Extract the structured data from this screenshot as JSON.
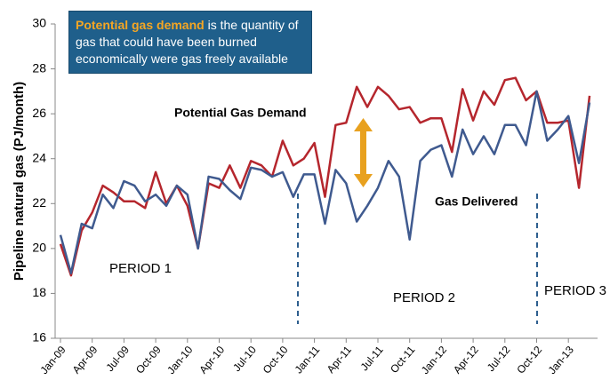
{
  "chart_data": {
    "type": "line",
    "y_label": "Pipeline natural gas (PJ/month)",
    "categories": [
      "Jan-09",
      null,
      null,
      "Apr-09",
      null,
      null,
      "Jul-09",
      null,
      null,
      "Oct-09",
      null,
      null,
      "Jan-10",
      null,
      null,
      "Apr-10",
      null,
      null,
      "Jul-10",
      null,
      null,
      "Oct-10",
      null,
      null,
      "Jan-11",
      null,
      null,
      "Apr-11",
      null,
      null,
      "Jul-11",
      null,
      null,
      "Oct-11",
      null,
      null,
      "Jan-12",
      null,
      null,
      "Apr-12",
      null,
      null,
      "Jul-12",
      null,
      null,
      "Oct-12",
      null,
      null,
      "Jan-13",
      null,
      null
    ],
    "series": [
      {
        "name": "Potential Gas Demand",
        "color": "#b5262d",
        "values": [
          20.2,
          18.8,
          20.8,
          21.6,
          22.8,
          22.5,
          22.1,
          22.1,
          21.8,
          23.4,
          22.0,
          22.8,
          21.9,
          20.0,
          22.9,
          22.7,
          23.7,
          22.7,
          23.9,
          23.7,
          23.2,
          24.8,
          23.7,
          24.0,
          24.7,
          22.3,
          25.5,
          25.6,
          27.2,
          26.3,
          27.2,
          26.8,
          26.2,
          26.3,
          25.6,
          25.8,
          25.8,
          24.3,
          27.1,
          25.7,
          27.0,
          26.4,
          27.5,
          27.6,
          26.6,
          27.0,
          25.6,
          25.6,
          25.7,
          22.7,
          26.8
        ]
      },
      {
        "name": "Gas Delivered",
        "color": "#3f5a8f",
        "values": [
          20.6,
          18.9,
          21.1,
          20.9,
          22.4,
          21.8,
          23.0,
          22.8,
          22.1,
          22.4,
          21.9,
          22.8,
          22.4,
          20.0,
          23.2,
          23.1,
          22.6,
          22.2,
          23.6,
          23.5,
          23.2,
          23.4,
          22.3,
          23.3,
          23.3,
          21.1,
          23.5,
          22.9,
          21.2,
          21.9,
          22.7,
          23.9,
          23.2,
          20.4,
          23.9,
          24.4,
          24.6,
          23.2,
          25.3,
          24.2,
          25.0,
          24.2,
          25.5,
          25.5,
          24.6,
          27.0,
          24.8,
          25.3,
          25.9,
          23.8,
          26.5
        ]
      }
    ],
    "ylim": [
      16,
      30
    ],
    "yticks": [
      16,
      18,
      20,
      22,
      24,
      26,
      28,
      30
    ],
    "grid": false,
    "annotation": {
      "highlight": "Potential gas demand",
      "text": " is the quantity of gas that could have been burned economically were gas freely available"
    },
    "periods": [
      "PERIOD 1",
      "PERIOD 2",
      "PERIOD 3"
    ]
  }
}
